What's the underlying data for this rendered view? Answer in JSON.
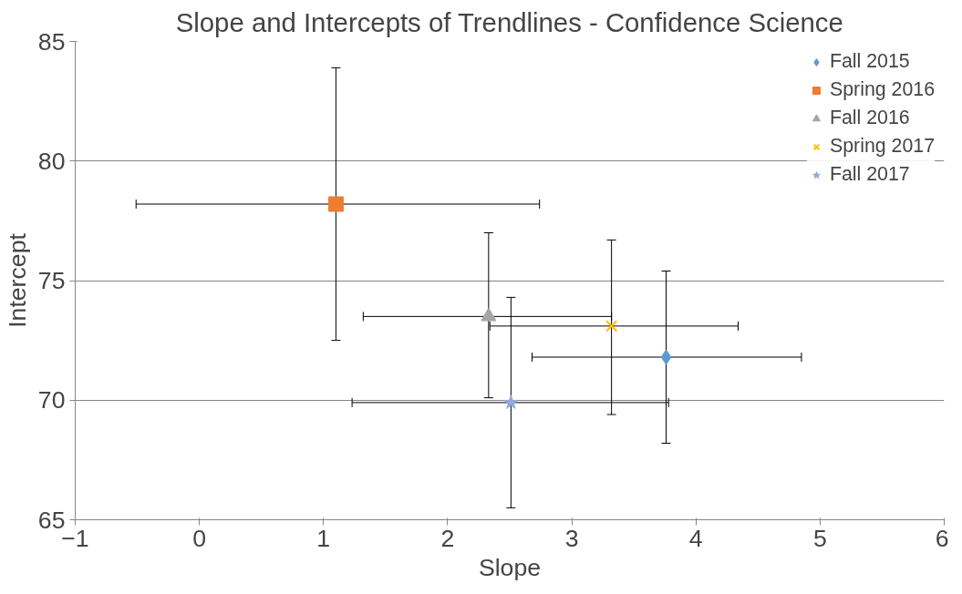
{
  "chart_data": {
    "type": "scatter",
    "title": "Slope and Intercepts of Trendlines - Confidence Science",
    "xlabel": "Slope",
    "ylabel": "Intercept",
    "xlim": [
      -1,
      6
    ],
    "xticks": [
      -1,
      0,
      1,
      2,
      3,
      4,
      5,
      6
    ],
    "ylim": [
      65,
      85
    ],
    "yticks": [
      65,
      70,
      75,
      80,
      85
    ],
    "grid": "y",
    "legend": "top right",
    "series": [
      {
        "name": "Fall 2015",
        "color": "#5b9bd5",
        "marker": "diamond",
        "x": [
          3.76
        ],
        "values": [
          71.8
        ],
        "xerrors": [
          [
            2.68,
            4.85
          ]
        ],
        "errors": [
          [
            68.2,
            75.4
          ]
        ]
      },
      {
        "name": "Spring 2016",
        "color": "#ed7d31",
        "marker": "square",
        "x": [
          1.1
        ],
        "values": [
          78.2
        ],
        "xerrors": [
          [
            -0.51,
            2.74
          ]
        ],
        "errors": [
          [
            72.5,
            83.9
          ]
        ]
      },
      {
        "name": "Fall 2016",
        "color": "#a5a5a5",
        "marker": "triangle",
        "x": [
          2.33
        ],
        "values": [
          73.5
        ],
        "xerrors": [
          [
            1.32,
            3.32
          ]
        ],
        "errors": [
          [
            70.1,
            77.0
          ]
        ]
      },
      {
        "name": "Spring 2017",
        "color": "#ffc000",
        "marker": "cross",
        "x": [
          3.32
        ],
        "values": [
          73.1
        ],
        "xerrors": [
          [
            2.34,
            4.34
          ]
        ],
        "errors": [
          [
            69.4,
            76.7
          ]
        ]
      },
      {
        "name": "Fall 2017",
        "color": "#8faadc",
        "marker": "star",
        "x": [
          2.51
        ],
        "values": [
          69.9
        ],
        "xerrors": [
          [
            1.23,
            3.78
          ]
        ],
        "errors": [
          [
            65.5,
            74.3
          ]
        ]
      }
    ]
  }
}
